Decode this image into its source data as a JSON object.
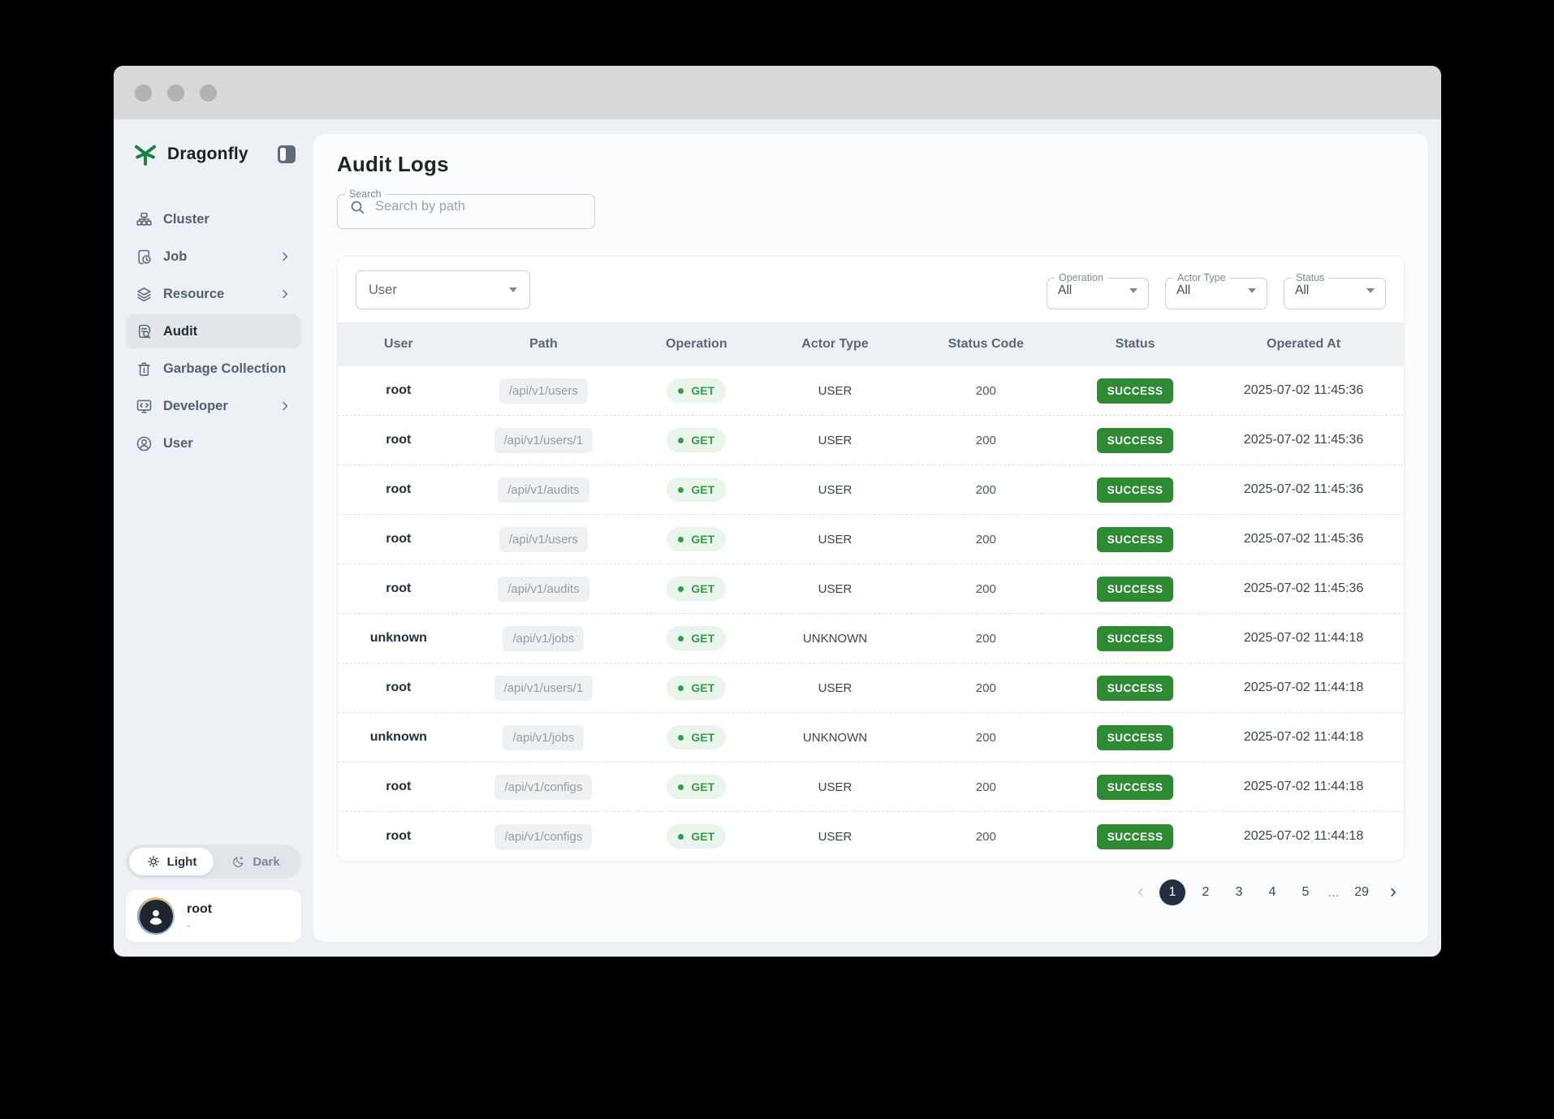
{
  "sidebar": {
    "brand": "Dragonfly",
    "items": [
      {
        "label": "Cluster",
        "icon": "cluster-icon",
        "chevron": false,
        "active": false
      },
      {
        "label": "Job",
        "icon": "job-icon",
        "chevron": true,
        "active": false
      },
      {
        "label": "Resource",
        "icon": "resource-icon",
        "chevron": true,
        "active": false
      },
      {
        "label": "Audit",
        "icon": "audit-icon",
        "chevron": false,
        "active": true
      },
      {
        "label": "Garbage Collection",
        "icon": "trash-icon",
        "chevron": false,
        "active": false
      },
      {
        "label": "Developer",
        "icon": "developer-icon",
        "chevron": true,
        "active": false
      },
      {
        "label": "User",
        "icon": "user-icon",
        "chevron": false,
        "active": false
      }
    ],
    "theme_toggle": {
      "light": "Light",
      "dark": "Dark",
      "selected": "Light"
    },
    "profile": {
      "name": "root",
      "subtitle": "-"
    }
  },
  "main": {
    "title": "Audit Logs",
    "search": {
      "label": "Search",
      "placeholder": "Search by path"
    },
    "filters": {
      "user_select": {
        "value": "User"
      },
      "operation": {
        "label": "Operation",
        "value": "All"
      },
      "actor_type": {
        "label": "Actor Type",
        "value": "All"
      },
      "status": {
        "label": "Status",
        "value": "All"
      }
    },
    "table": {
      "columns": [
        "User",
        "Path",
        "Operation",
        "Actor Type",
        "Status Code",
        "Status",
        "Operated At"
      ],
      "rows": [
        {
          "user": "root",
          "path": "/api/v1/users",
          "operation": "GET",
          "actor_type": "USER",
          "status_code": "200",
          "status": "SUCCESS",
          "operated_at": "2025-07-02 11:45:36"
        },
        {
          "user": "root",
          "path": "/api/v1/users/1",
          "operation": "GET",
          "actor_type": "USER",
          "status_code": "200",
          "status": "SUCCESS",
          "operated_at": "2025-07-02 11:45:36"
        },
        {
          "user": "root",
          "path": "/api/v1/audits",
          "operation": "GET",
          "actor_type": "USER",
          "status_code": "200",
          "status": "SUCCESS",
          "operated_at": "2025-07-02 11:45:36"
        },
        {
          "user": "root",
          "path": "/api/v1/users",
          "operation": "GET",
          "actor_type": "USER",
          "status_code": "200",
          "status": "SUCCESS",
          "operated_at": "2025-07-02 11:45:36"
        },
        {
          "user": "root",
          "path": "/api/v1/audits",
          "operation": "GET",
          "actor_type": "USER",
          "status_code": "200",
          "status": "SUCCESS",
          "operated_at": "2025-07-02 11:45:36"
        },
        {
          "user": "unknown",
          "path": "/api/v1/jobs",
          "operation": "GET",
          "actor_type": "UNKNOWN",
          "status_code": "200",
          "status": "SUCCESS",
          "operated_at": "2025-07-02 11:44:18"
        },
        {
          "user": "root",
          "path": "/api/v1/users/1",
          "operation": "GET",
          "actor_type": "USER",
          "status_code": "200",
          "status": "SUCCESS",
          "operated_at": "2025-07-02 11:44:18"
        },
        {
          "user": "unknown",
          "path": "/api/v1/jobs",
          "operation": "GET",
          "actor_type": "UNKNOWN",
          "status_code": "200",
          "status": "SUCCESS",
          "operated_at": "2025-07-02 11:44:18"
        },
        {
          "user": "root",
          "path": "/api/v1/configs",
          "operation": "GET",
          "actor_type": "USER",
          "status_code": "200",
          "status": "SUCCESS",
          "operated_at": "2025-07-02 11:44:18"
        },
        {
          "user": "root",
          "path": "/api/v1/configs",
          "operation": "GET",
          "actor_type": "USER",
          "status_code": "200",
          "status": "SUCCESS",
          "operated_at": "2025-07-02 11:44:18"
        }
      ]
    },
    "pagination": {
      "prev": "‹",
      "next": "›",
      "pages": [
        "1",
        "2",
        "3",
        "4",
        "5",
        "…",
        "29"
      ],
      "active": "1"
    }
  },
  "colors": {
    "brand_green": "#17813f",
    "success_badge": "#2e8b34",
    "get_chip_text": "#2f9e44",
    "get_chip_bg": "#e9f5ea",
    "active_page_bg": "#233043",
    "header_bg": "#eef1f4"
  }
}
